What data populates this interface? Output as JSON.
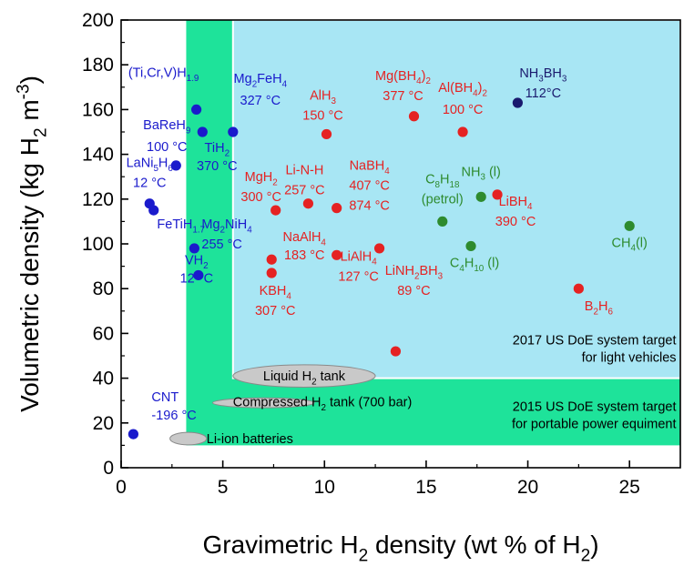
{
  "chart_data": {
    "type": "scatter",
    "xlabel": "Gravimetric H2 density (wt % of H2)",
    "ylabel": "Volumetric density (kg H2 m-3)",
    "xlim": [
      0,
      27.5
    ],
    "ylim": [
      0,
      200
    ],
    "xticks": [
      0,
      5,
      10,
      15,
      20,
      25
    ],
    "yticks": [
      0,
      20,
      40,
      60,
      80,
      100,
      120,
      140,
      160,
      180,
      200
    ],
    "grid": false,
    "colors": {
      "blue": "#1a1acc",
      "red": "#e52222",
      "green": "#2e8b2e",
      "navy": "#1a1a6e",
      "target_2015": "#1ee39a",
      "target_2017": "#a8e6f4"
    },
    "regions": [
      {
        "name": "2015",
        "x": [
          3.2,
          27.5
        ],
        "y": [
          10,
          200
        ],
        "color": "target_2015",
        "label": [
          "2015 US DoE system target",
          "for portable power equiment"
        ]
      },
      {
        "name": "2017",
        "x": [
          5.5,
          27.5
        ],
        "y": [
          40,
          200
        ],
        "color": "target_2017",
        "label": [
          "2017 US DoE system target",
          "for light vehicles"
        ]
      }
    ],
    "ellipses": [
      {
        "label": "Liquid H2 tank",
        "cx": 9,
        "cy": 41,
        "rx": 3.5,
        "ry": 5
      },
      {
        "label": "Compressed H2 tank (700 bar)",
        "cx": 7,
        "cy": 29,
        "rx": 2.5,
        "ry": 2.2
      },
      {
        "label": "Li-ion batteries",
        "cx": 3.3,
        "cy": 13,
        "rx": 0.9,
        "ry": 2.8
      }
    ],
    "points": [
      {
        "x": 0.6,
        "y": 15,
        "color": "blue",
        "label": [
          "CNT",
          "-196 °C"
        ]
      },
      {
        "x": 1.4,
        "y": 118,
        "color": "blue",
        "label": [
          "LaNi5H6",
          "12 °C"
        ]
      },
      {
        "x": 1.6,
        "y": 115,
        "color": "blue",
        "label": [
          "FeTiH1.7"
        ]
      },
      {
        "x": 2.7,
        "y": 135,
        "color": "blue",
        "label": [
          "BaReH9",
          "100 °C"
        ]
      },
      {
        "x": 3.6,
        "y": 98,
        "color": "blue",
        "label": [
          "Mg2NiH4",
          "255 °C"
        ]
      },
      {
        "x": 3.8,
        "y": 86,
        "color": "blue",
        "label": [
          "VH2",
          "12 °C"
        ]
      },
      {
        "x": 3.7,
        "y": 160,
        "color": "blue",
        "label": [
          "(Ti,Cr,V)H1.9"
        ]
      },
      {
        "x": 4.0,
        "y": 150,
        "color": "blue",
        "label": [
          "TiH2",
          "370 °C"
        ]
      },
      {
        "x": 5.5,
        "y": 150,
        "color": "blue",
        "label": [
          "Mg2FeH4",
          "327 °C"
        ]
      },
      {
        "x": 7.4,
        "y": 93,
        "color": "red",
        "label": [
          "NaAlH4",
          "183 °C"
        ]
      },
      {
        "x": 7.4,
        "y": 87,
        "color": "red",
        "label": [
          "KBH4",
          "307 °C"
        ]
      },
      {
        "x": 7.6,
        "y": 115,
        "color": "red",
        "label": [
          "MgH2",
          "300 °C"
        ]
      },
      {
        "x": 9.2,
        "y": 118,
        "color": "red",
        "label": [
          "Li-N-H",
          "257 °C"
        ]
      },
      {
        "x": 10.1,
        "y": 149,
        "color": "red",
        "label": [
          "AlH3",
          "150 °C"
        ]
      },
      {
        "x": 10.6,
        "y": 95,
        "color": "red",
        "label": [
          "LiAlH4",
          "127 °C"
        ]
      },
      {
        "x": 10.6,
        "y": 116,
        "color": "red",
        "label": [
          "NaBH4",
          "407 °C",
          "874 °C"
        ]
      },
      {
        "x": 12.7,
        "y": 98,
        "color": "red",
        "label": []
      },
      {
        "x": 13.5,
        "y": 52,
        "color": "red",
        "label": [
          "LiNH2BH3",
          "89 °C"
        ]
      },
      {
        "x": 14.4,
        "y": 157,
        "color": "red",
        "label": [
          "Mg(BH4)2",
          "377 °C"
        ]
      },
      {
        "x": 16.8,
        "y": 150,
        "color": "red",
        "label": [
          "Al(BH4)2",
          "100 °C"
        ]
      },
      {
        "x": 18.5,
        "y": 122,
        "color": "red",
        "label": [
          "LiBH4",
          "390 °C"
        ]
      },
      {
        "x": 22.5,
        "y": 80,
        "color": "red",
        "label": [
          "B2H6"
        ]
      },
      {
        "x": 15.8,
        "y": 110,
        "color": "green",
        "label": [
          "C8H18",
          "(petrol)"
        ]
      },
      {
        "x": 17.2,
        "y": 99,
        "color": "green",
        "label": [
          "C4H10 (l)"
        ]
      },
      {
        "x": 17.7,
        "y": 121,
        "color": "green",
        "label": [
          "NH3 (l)"
        ]
      },
      {
        "x": 25.0,
        "y": 108,
        "color": "green",
        "label": [
          "CH4(l)"
        ]
      },
      {
        "x": 19.5,
        "y": 163,
        "color": "navy",
        "label": [
          "NH3BH3",
          "112°C"
        ]
      }
    ]
  }
}
